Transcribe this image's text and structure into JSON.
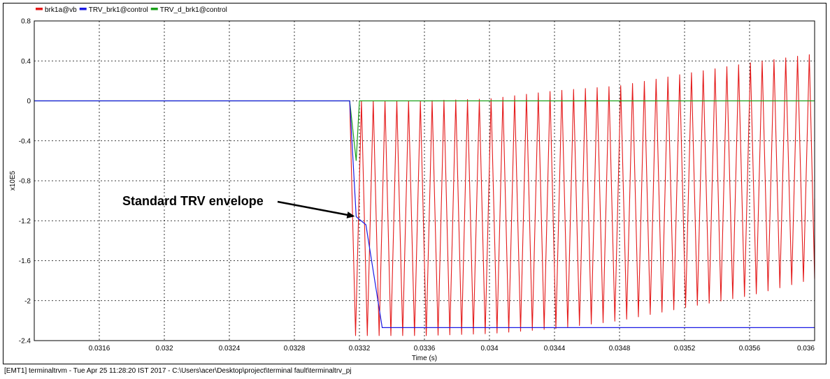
{
  "chart_data": {
    "type": "line",
    "xlabel": "Time (s)",
    "ylabel": "x10E5",
    "xlim": [
      0.0312,
      0.036
    ],
    "ylim": [
      -2.4,
      0.8
    ],
    "x_ticks": [
      "0.0316",
      "0.032",
      "0.0324",
      "0.0328",
      "0.0332",
      "0.0336",
      "0.034",
      "0.0344",
      "0.0348",
      "0.0352",
      "0.0356",
      "0.036"
    ],
    "x_tick_values": [
      0.0316,
      0.032,
      0.0324,
      0.0328,
      0.0332,
      0.0336,
      0.034,
      0.0344,
      0.0348,
      0.0352,
      0.0356,
      0.036
    ],
    "y_ticks": [
      "0.8",
      "0.4",
      "0",
      "-0.4",
      "-0.8",
      "-1.2",
      "-1.6",
      "-2",
      "-2.4"
    ],
    "y_tick_values": [
      0.8,
      0.4,
      0,
      -0.4,
      -0.8,
      -1.2,
      -1.6,
      -2,
      -2.4
    ],
    "grid": true,
    "legend_position": "top-left",
    "series": [
      {
        "name": "brk1a@vb",
        "color": "#e41a1a",
        "description_kind": "oscillation",
        "x_start": 0.03314,
        "x_end": 0.036,
        "period": 7.25e-05,
        "x": [
          0.0312,
          0.03314,
          0.0336,
          0.034,
          0.0344,
          0.0348,
          0.0352,
          0.0356,
          0.036
        ],
        "upper": [
          0,
          0.0,
          0.0,
          0.02,
          0.1,
          0.15,
          0.27,
          0.38,
          0.47
        ],
        "lower": [
          0,
          -2.35,
          -2.35,
          -2.33,
          -2.28,
          -2.2,
          -2.07,
          -1.95,
          -1.78
        ]
      },
      {
        "name": "TRV_brk1@control",
        "color": "#1a1ae4",
        "x": [
          0.0312,
          0.03314,
          0.03318,
          0.03324,
          0.03334,
          0.036
        ],
        "y": [
          0,
          0,
          -1.16,
          -1.24,
          -2.27,
          -2.27
        ]
      },
      {
        "name": "TRV_d_brk1@control",
        "color": "#1aa01a",
        "x": [
          0.0312,
          0.03314,
          0.03318,
          0.0332,
          0.036
        ],
        "y": [
          0,
          0,
          -0.6,
          0,
          0
        ]
      }
    ],
    "annotation": {
      "text": "Standard TRV envelope",
      "x": 0.03318,
      "y": -1.16
    }
  },
  "status_bar": "[EMT1] terminaltrvm - Tue Apr 25 11:28:20 IST 2017 - C:\\Users\\acer\\Desktop\\project\\terminal fault\\terminaltrv_pj"
}
